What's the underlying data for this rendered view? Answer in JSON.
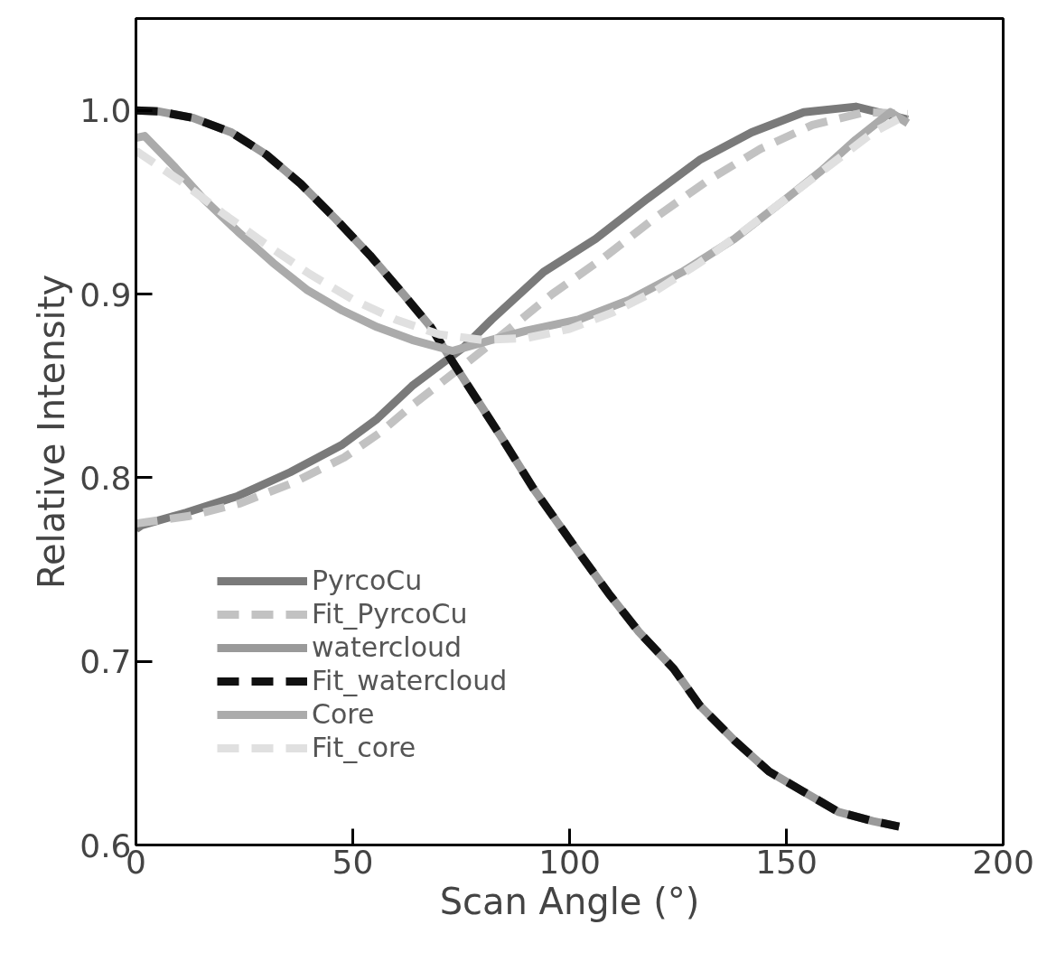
{
  "chart_data": {
    "type": "line",
    "xlabel": "Scan Angle (°)",
    "ylabel": "Relative Intensity",
    "xlim": [
      0,
      200
    ],
    "ylim": [
      0.6,
      1.05
    ],
    "xticks": [
      0,
      50,
      100,
      150,
      200
    ],
    "yticks": [
      {
        "value": 0.6,
        "label": "0.6"
      },
      {
        "value": 0.7,
        "label": "0.7"
      },
      {
        "value": 0.8,
        "label": "0.8"
      },
      {
        "value": 0.9,
        "label": "0.9"
      },
      {
        "value": 1.0,
        "label": "1.0"
      }
    ],
    "grid": false,
    "legend": "bottom left",
    "marker": "none",
    "series": [
      {
        "name": "PyrcoCu",
        "color": "#7a7a7a",
        "line_style": "solid",
        "x": [
          0,
          1.2,
          11.6,
          23.5,
          35.6,
          47.6,
          55.6,
          63.7,
          75.6,
          82,
          94,
          106,
          118,
          130,
          142,
          154,
          166,
          178
        ],
        "values": [
          0.772,
          0.774,
          0.781,
          0.79,
          0.803,
          0.818,
          0.832,
          0.85,
          0.871,
          0.886,
          0.912,
          0.93,
          0.952,
          0.973,
          0.988,
          0.999,
          1.002,
          0.995
        ]
      },
      {
        "name": "Fit_PyrcoCu",
        "color": "#c2c2c2",
        "line_style": "dashed",
        "x": [
          0,
          12,
          24,
          36,
          48,
          56,
          64,
          76,
          84,
          96,
          108,
          120,
          132,
          144,
          156,
          168,
          178
        ],
        "values": [
          0.775,
          0.779,
          0.786,
          0.797,
          0.811,
          0.824,
          0.84,
          0.862,
          0.877,
          0.9,
          0.92,
          0.942,
          0.962,
          0.979,
          0.992,
          0.999,
          0.998
        ]
      },
      {
        "name": "watercloud",
        "color": "#9a9a9a",
        "line_style": "solid",
        "x": [
          0,
          5,
          13,
          22,
          30,
          38,
          46,
          54,
          62,
          68,
          72.5,
          84,
          91.7,
          101,
          109,
          116,
          124,
          130,
          138,
          146,
          154,
          162,
          170,
          176
        ],
        "values": [
          1.0,
          0.9995,
          0.996,
          0.988,
          0.976,
          0.96,
          0.941,
          0.921,
          0.899,
          0.882,
          0.865,
          0.823,
          0.794,
          0.763,
          0.737,
          0.716,
          0.696,
          0.676,
          0.657,
          0.64,
          0.629,
          0.618,
          0.613,
          0.61
        ]
      },
      {
        "name": "Fit_watercloud",
        "color": "#111111",
        "line_style": "dashed",
        "x": [
          0,
          5,
          13,
          22,
          30,
          38,
          46,
          54,
          62,
          68,
          72.5,
          84,
          91.7,
          101,
          109,
          116,
          124,
          130,
          138,
          146,
          154,
          162,
          170,
          176
        ],
        "values": [
          1.0,
          0.9995,
          0.996,
          0.988,
          0.976,
          0.96,
          0.941,
          0.921,
          0.899,
          0.882,
          0.865,
          0.823,
          0.794,
          0.763,
          0.737,
          0.716,
          0.696,
          0.676,
          0.657,
          0.64,
          0.629,
          0.618,
          0.613,
          0.61
        ]
      },
      {
        "name": "Core",
        "color": "#ababab",
        "line_style": "solid",
        "x": [
          0,
          2,
          9,
          15.5,
          23.5,
          31.6,
          39.6,
          47.6,
          55.6,
          63.7,
          73,
          82,
          90,
          102,
          114,
          126,
          138,
          150,
          158,
          166,
          174,
          178
        ],
        "values": [
          0.985,
          0.986,
          0.969,
          0.952,
          0.934,
          0.917,
          0.902,
          0.891,
          0.882,
          0.875,
          0.869,
          0.875,
          0.88,
          0.886,
          0.897,
          0.912,
          0.93,
          0.952,
          0.967,
          0.984,
          0.999,
          0.993
        ]
      },
      {
        "name": "Fit_core",
        "color": "#e0e0e0",
        "line_style": "dashed",
        "x": [
          0,
          10,
          20,
          30,
          40,
          50,
          60,
          70,
          80,
          90,
          100,
          110,
          120,
          130,
          140,
          150,
          160,
          170,
          178
        ],
        "values": [
          0.978,
          0.962,
          0.944,
          0.927,
          0.911,
          0.897,
          0.886,
          0.878,
          0.875,
          0.876,
          0.881,
          0.89,
          0.902,
          0.917,
          0.934,
          0.952,
          0.97,
          0.988,
          0.998
        ]
      }
    ]
  }
}
